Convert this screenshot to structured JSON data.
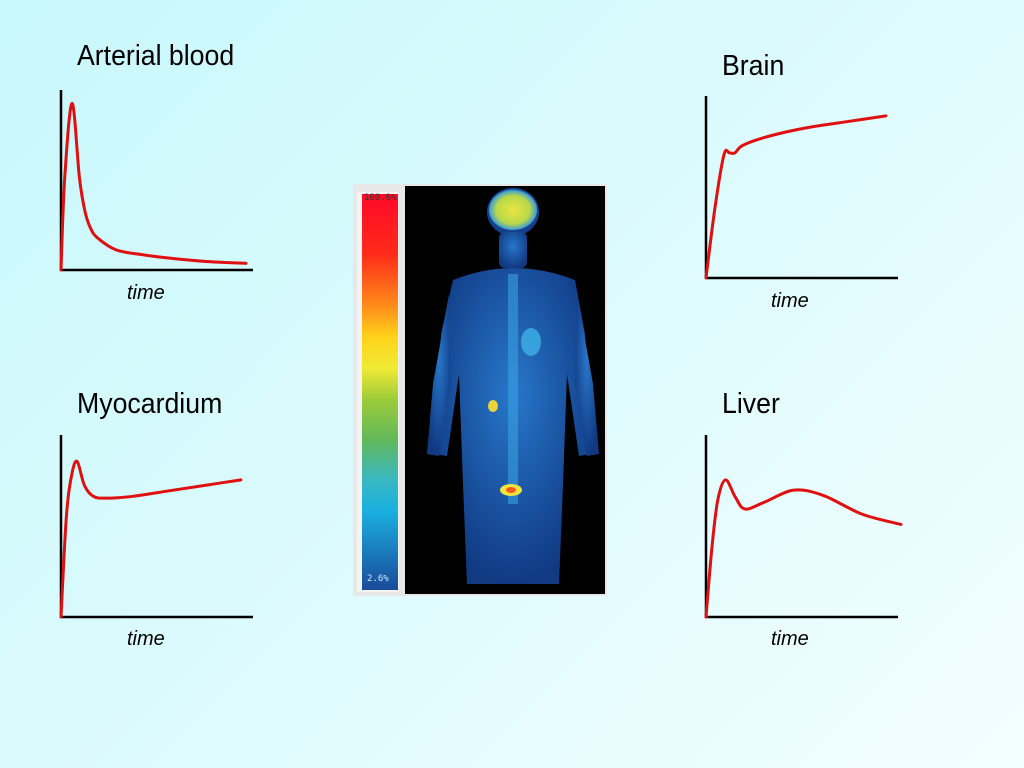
{
  "chart_data": [
    {
      "type": "line",
      "title": "Arterial blood",
      "xlabel": "time",
      "ylabel": "",
      "series": [
        {
          "x": [
            0,
            0.02,
            0.06,
            0.1,
            0.13,
            0.16,
            0.2,
            0.3,
            0.45,
            0.6,
            0.8,
            1.0
          ],
          "values": [
            0,
            0.55,
            1.0,
            0.55,
            0.35,
            0.25,
            0.19,
            0.12,
            0.09,
            0.07,
            0.05,
            0.04
          ]
        }
      ],
      "xlim": [
        0,
        1
      ],
      "ylim": [
        0,
        1.05
      ],
      "grid": false,
      "color": "#e01010"
    },
    {
      "type": "line",
      "title": "Brain",
      "xlabel": "time",
      "ylabel": "",
      "series": [
        {
          "x": [
            0,
            0.05,
            0.1,
            0.13,
            0.16,
            0.2,
            0.3,
            0.45,
            0.6,
            0.8,
            1.0
          ],
          "values": [
            0,
            0.4,
            0.7,
            0.71,
            0.71,
            0.75,
            0.79,
            0.83,
            0.86,
            0.89,
            0.92
          ]
        }
      ],
      "xlim": [
        0,
        1
      ],
      "ylim": [
        0,
        1.05
      ],
      "grid": false,
      "color": "#e01010"
    },
    {
      "type": "line",
      "title": "Myocardium",
      "xlabel": "time",
      "ylabel": "",
      "series": [
        {
          "x": [
            0,
            0.03,
            0.06,
            0.09,
            0.13,
            0.18,
            0.25,
            0.4,
            0.6,
            0.8,
            1.0
          ],
          "values": [
            0,
            0.55,
            0.78,
            0.85,
            0.72,
            0.66,
            0.65,
            0.66,
            0.69,
            0.72,
            0.75
          ]
        }
      ],
      "xlim": [
        0,
        1
      ],
      "ylim": [
        0,
        1.05
      ],
      "grid": false,
      "color": "#e01010"
    },
    {
      "type": "line",
      "title": "Liver",
      "xlabel": "time",
      "ylabel": "",
      "series": [
        {
          "x": [
            0,
            0.03,
            0.06,
            0.1,
            0.15,
            0.2,
            0.3,
            0.45,
            0.6,
            0.8,
            1.0
          ],
          "values": [
            0,
            0.4,
            0.68,
            0.8,
            0.7,
            0.63,
            0.67,
            0.74,
            0.71,
            0.6,
            0.54
          ]
        }
      ],
      "xlim": [
        0,
        1
      ],
      "ylim": [
        0,
        1.05
      ],
      "grid": false,
      "color": "#e01010"
    }
  ],
  "pet_image": {
    "scale_max_label": "100.0%",
    "scale_min_label": "2.6%",
    "colormap": [
      "#ff0a28",
      "#ff7a1a",
      "#ffd21a",
      "#f2ec30",
      "#8fc43a",
      "#4cb870",
      "#2ab6d8",
      "#1a8fd6",
      "#1a5aa8"
    ]
  }
}
